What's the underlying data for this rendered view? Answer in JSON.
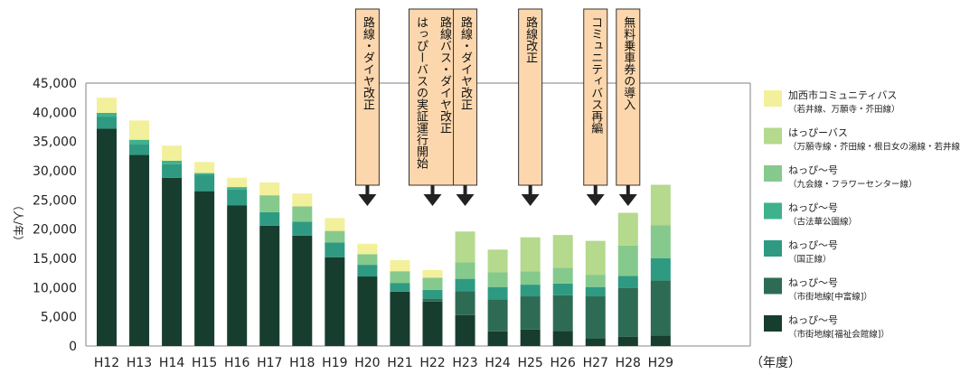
{
  "chart_data": {
    "type": "bar",
    "stacked": true,
    "ylabel": "（人/年）",
    "xlabel": "（年度）",
    "ylim": [
      0,
      45000
    ],
    "yticks": [
      0,
      5000,
      10000,
      15000,
      20000,
      25000,
      30000,
      35000,
      40000,
      45000
    ],
    "ytick_labels": [
      "0",
      "5,000",
      "10,000",
      "15,000",
      "20,000",
      "25,000",
      "30,000",
      "35,000",
      "40,000",
      "45,000"
    ],
    "categories": [
      "H12",
      "H13",
      "H14",
      "H15",
      "H16",
      "H17",
      "H18",
      "H19",
      "H20",
      "H21",
      "H22",
      "H23",
      "H24",
      "H25",
      "H26",
      "H27",
      "H28",
      "H29"
    ],
    "legend_position": "right",
    "series": [
      {
        "name": "ねっぴ～号\n（市街地線[福祉会館線]）",
        "color": "#173d2f",
        "values": [
          37200,
          32700,
          28800,
          26500,
          24100,
          20600,
          18900,
          15200,
          11900,
          9300,
          7600,
          5300,
          2500,
          2800,
          2600,
          1300,
          1600,
          1800
        ]
      },
      {
        "name": "ねっぴ～号\n（市街地線[中富線]）",
        "color": "#2e6b55",
        "values": [
          0,
          0,
          0,
          0,
          0,
          0,
          0,
          0,
          0,
          0,
          500,
          4100,
          5500,
          5700,
          6100,
          7200,
          8300,
          9400
        ]
      },
      {
        "name": "ねっぴ～号\n（国正線）",
        "color": "#2e9a82",
        "values": [
          2000,
          1900,
          2300,
          2800,
          2700,
          2300,
          2400,
          2500,
          2000,
          1500,
          1500,
          2100,
          2100,
          2000,
          2000,
          1600,
          2100,
          3800
        ]
      },
      {
        "name": "ねっぴ～号\n（古法華公園線）",
        "color": "#3fb18d",
        "values": [
          700,
          700,
          600,
          300,
          400,
          0,
          0,
          0,
          0,
          0,
          0,
          0,
          0,
          0,
          0,
          0,
          0,
          0
        ]
      },
      {
        "name": "ねっぴ～号\n（九会線・フラワーセンター線）",
        "color": "#86c98c",
        "values": [
          0,
          0,
          0,
          0,
          0,
          2900,
          2600,
          2000,
          1800,
          2000,
          2100,
          2800,
          2500,
          2300,
          2700,
          2100,
          5200,
          5700
        ]
      },
      {
        "name": "はっぴーバス\n（万願寺線・芥田線・根日女の湯線・若井線）",
        "color": "#b5d98d",
        "values": [
          0,
          0,
          0,
          0,
          0,
          0,
          0,
          0,
          0,
          0,
          0,
          5300,
          3900,
          5800,
          5600,
          5800,
          5600,
          6900
        ]
      },
      {
        "name": "加西市コミュニティバス\n（若井線、万願寺・芥田線）",
        "color": "#f2f09b",
        "values": [
          2600,
          3300,
          2600,
          1900,
          1600,
          2200,
          2200,
          2200,
          1800,
          1900,
          1300,
          0,
          0,
          0,
          0,
          0,
          0,
          0
        ]
      }
    ],
    "annotations": [
      {
        "category": "H20",
        "text": "路線・ダイヤ改正"
      },
      {
        "category": "H22",
        "text": "路線バス・ダイヤ改正\nはっぴーバスの実証運行開始"
      },
      {
        "category": "H23",
        "text": "路線・ダイヤ改正"
      },
      {
        "category": "H25",
        "text": "路線改正"
      },
      {
        "category": "H27",
        "text": "コミュニティバス再編"
      },
      {
        "category": "H28",
        "text": "無料乗車券の導入"
      }
    ]
  }
}
